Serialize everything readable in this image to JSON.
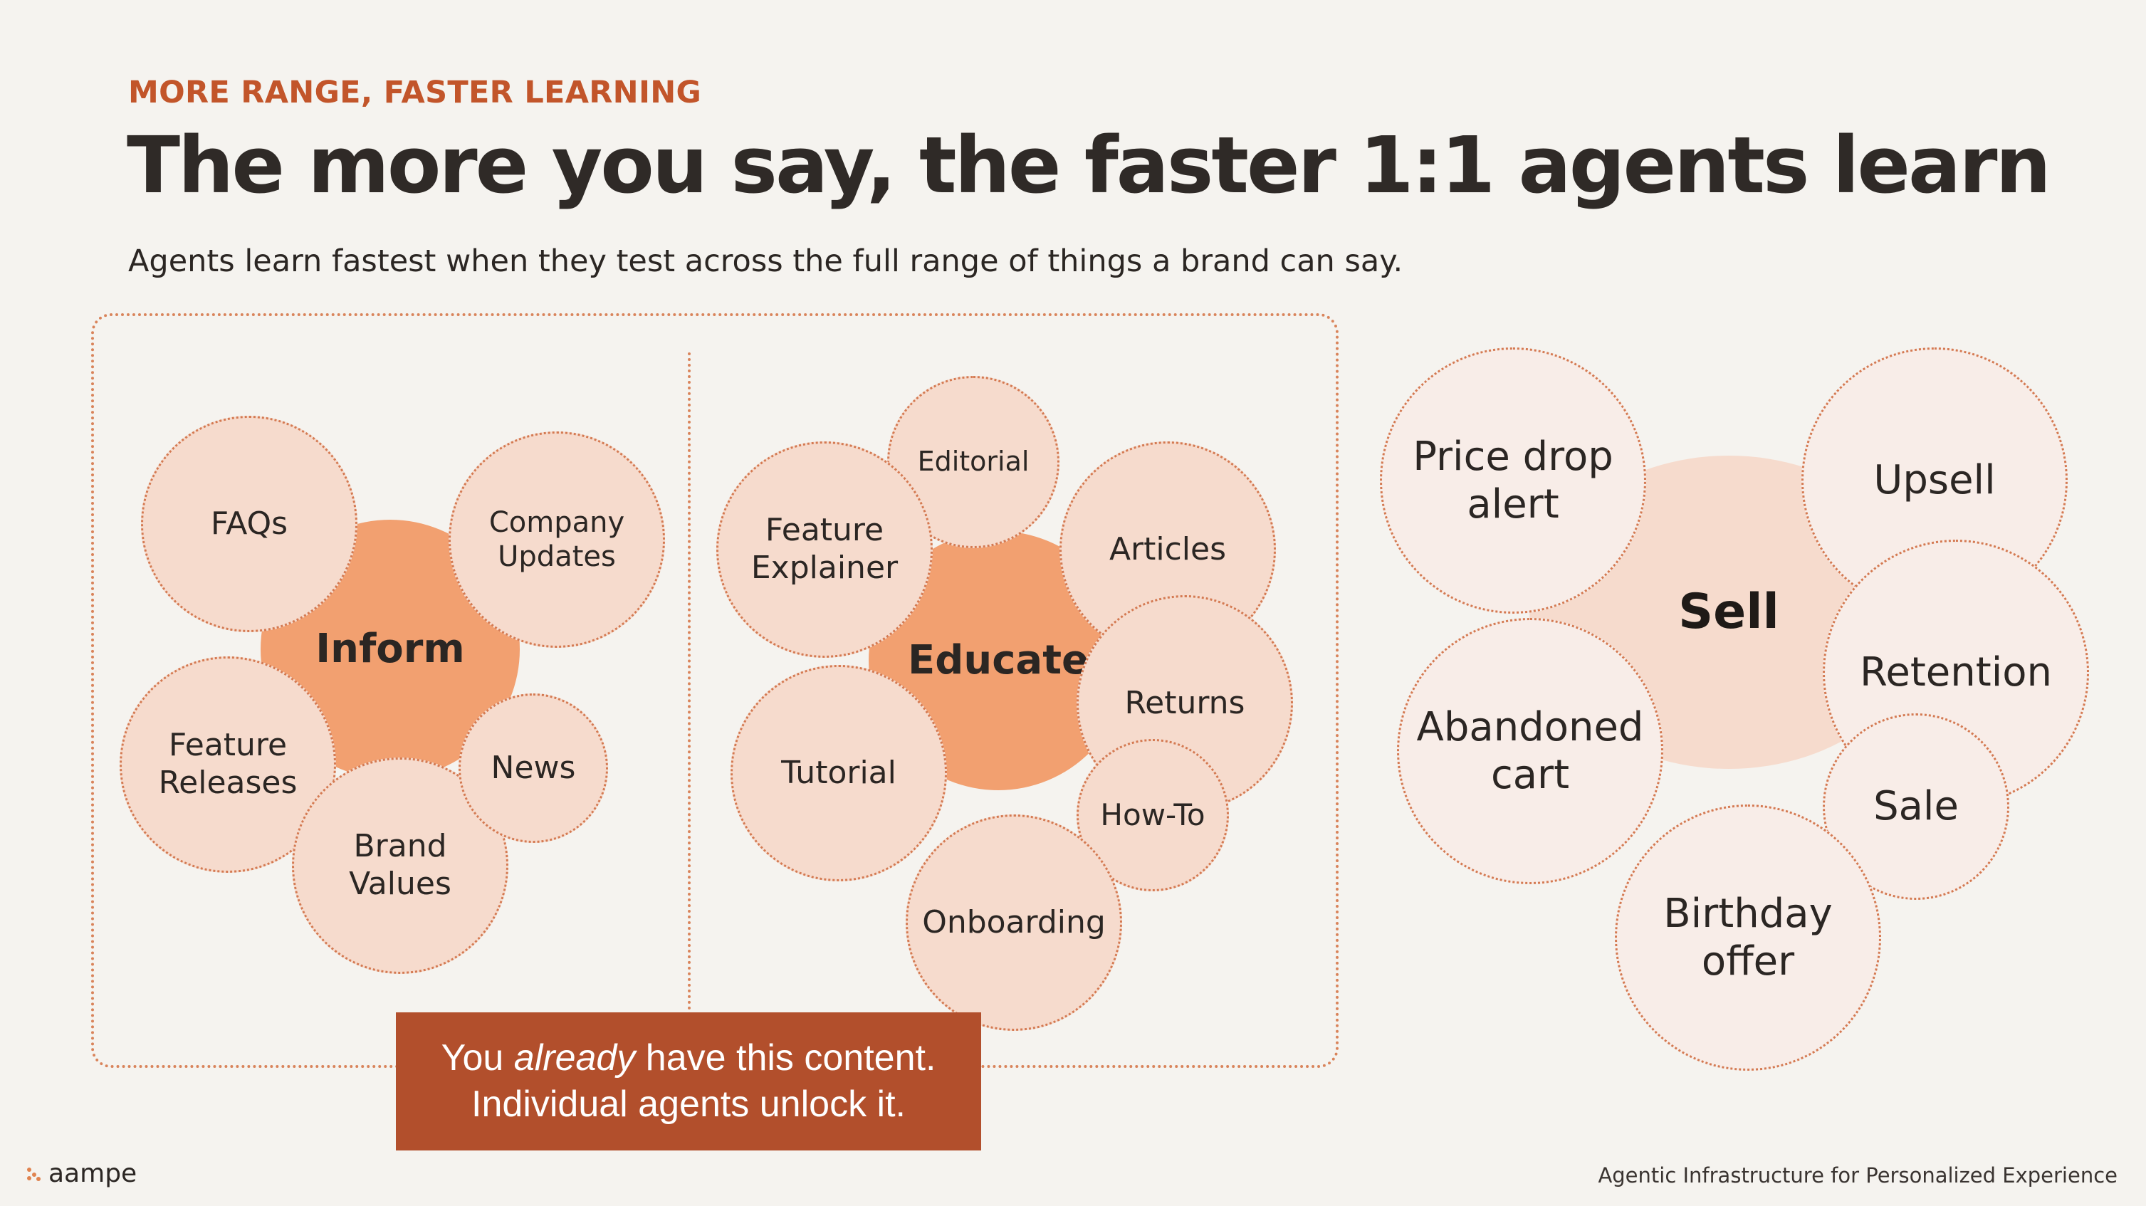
{
  "header": {
    "eyebrow": "MORE RANGE, FASTER LEARNING",
    "title": "The more you say, the faster 1:1 agents learn",
    "subtitle": "Agents learn fastest when they test across the full range of things a brand can say."
  },
  "inform": {
    "core": "Inform",
    "items": [
      "FAQs",
      "Company\nUpdates",
      "Feature\nReleases",
      "Brand\nValues",
      "News"
    ]
  },
  "educate": {
    "core": "Educate",
    "items": [
      "Editorial",
      "Feature\nExplainer",
      "Articles",
      "Returns",
      "Tutorial",
      "How-To",
      "Onboarding"
    ]
  },
  "sell": {
    "core": "Sell",
    "items": [
      "Price drop\nalert",
      "Upsell",
      "Retention",
      "Abandoned\ncart",
      "Sale",
      "Birthday\noffer"
    ]
  },
  "callout": {
    "line1_pre": "You ",
    "line1_em": "already",
    "line1_post": " have this content.",
    "line2": "Individual agents unlock it."
  },
  "footer": {
    "brand": "aampe",
    "tagline": "Agentic Infrastructure for Personalized Experience"
  },
  "colors": {
    "accent": "#c2552a",
    "core_fill": "#f2a070",
    "bubble_fill": "#f6dbcd",
    "pale_fill": "#f8ede8",
    "callout_fill": "#b24f2c"
  }
}
